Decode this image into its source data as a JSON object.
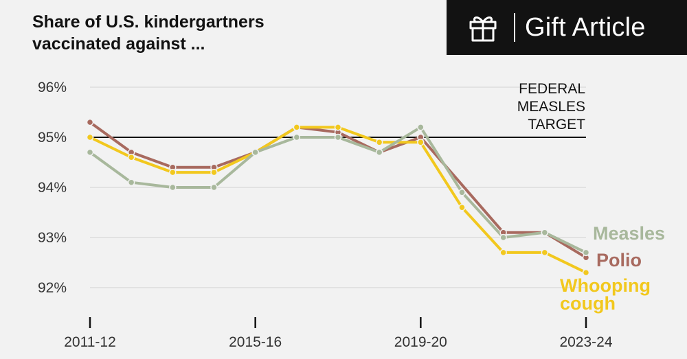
{
  "title_lines": [
    "Share of U.S. kindergartners",
    "vaccinated against ..."
  ],
  "gift": {
    "label": "Gift Article",
    "icon": "gift-icon"
  },
  "colors": {
    "measles": "#a8b89c",
    "polio": "#a86a5f",
    "whooping": "#f2c81e",
    "target": "#121212",
    "grid": "#dcdcdc"
  },
  "chart_data": {
    "type": "line",
    "title": "Share of U.S. kindergartners vaccinated against ...",
    "x": [
      "2011-12",
      "2012-13",
      "2013-14",
      "2014-15",
      "2015-16",
      "2016-17",
      "2017-18",
      "2018-19",
      "2019-20",
      "2020-21",
      "2021-22",
      "2022-23",
      "2023-24"
    ],
    "x_tick_labels": [
      "2011-12",
      "2015-16",
      "2019-20",
      "2023-24"
    ],
    "y_tick_labels": [
      "96%",
      "95%",
      "94%",
      "93%",
      "92%"
    ],
    "y_ticks": [
      96,
      95,
      94,
      93,
      92
    ],
    "ylim": [
      91.8,
      96.3
    ],
    "grid": true,
    "series": [
      {
        "name": "Polio",
        "label_lines": [
          "Polio"
        ],
        "color": "#a86a5f",
        "values": [
          95.3,
          94.7,
          94.4,
          94.4,
          94.7,
          95.2,
          95.1,
          94.7,
          95.0,
          null,
          93.1,
          93.1,
          92.6
        ]
      },
      {
        "name": "Whooping cough",
        "label_lines": [
          "Whooping",
          "cough"
        ],
        "color": "#f2c81e",
        "values": [
          95.0,
          94.6,
          94.3,
          94.3,
          94.7,
          95.2,
          95.2,
          94.9,
          94.9,
          93.6,
          92.7,
          92.7,
          92.3
        ]
      },
      {
        "name": "Measles",
        "label_lines": [
          "Measles"
        ],
        "color": "#a8b89c",
        "values": [
          94.7,
          94.1,
          94.0,
          94.0,
          94.7,
          95.0,
          95.0,
          94.7,
          95.2,
          93.9,
          93.0,
          93.1,
          92.7
        ]
      }
    ],
    "annotations": [
      {
        "label_lines": [
          "FEDERAL",
          "MEASLES",
          "TARGET"
        ],
        "y": 95
      }
    ]
  }
}
